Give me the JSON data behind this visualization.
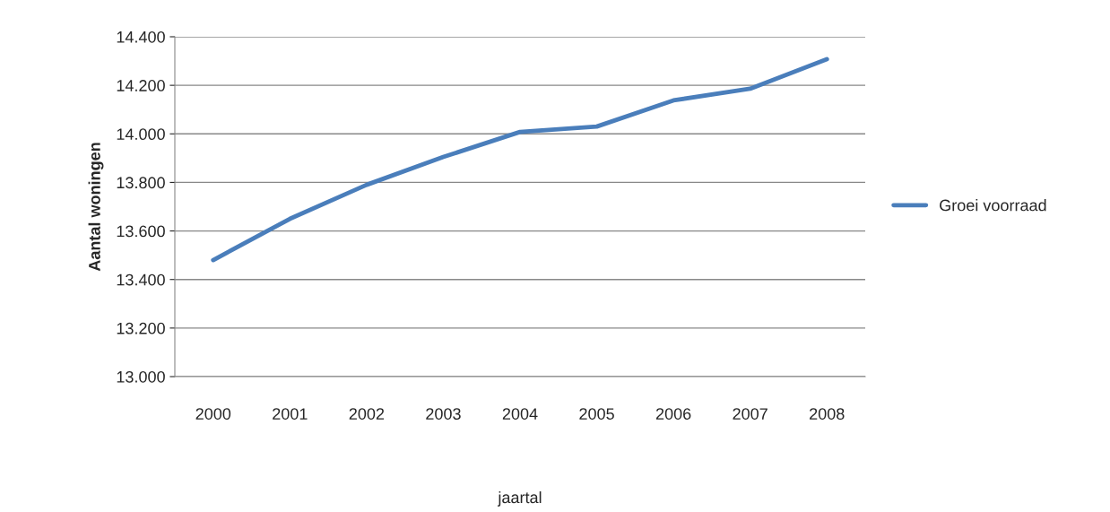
{
  "chart_data": {
    "type": "line",
    "ylabel": "Aantal woningen",
    "xlabel": "jaartal",
    "categories": [
      "2000",
      "2001",
      "2002",
      "2003",
      "2004",
      "2005",
      "2006",
      "2007",
      "2008"
    ],
    "series": [
      {
        "name": "Groei voorraad",
        "color": "#4a7ebb",
        "values": [
          13480,
          13650,
          13790,
          13905,
          14008,
          14030,
          14138,
          14186,
          14308
        ]
      }
    ],
    "ylim": [
      13000,
      14400
    ],
    "yticks": [
      {
        "value": 13000,
        "label": "13.000"
      },
      {
        "value": 13200,
        "label": "13.200"
      },
      {
        "value": 13400,
        "label": "13.400"
      },
      {
        "value": 13600,
        "label": "13.600"
      },
      {
        "value": 13800,
        "label": "13.800"
      },
      {
        "value": 14000,
        "label": "14.000"
      },
      {
        "value": 14200,
        "label": "14.200"
      },
      {
        "value": 14400,
        "label": "14.400"
      }
    ],
    "grid": "y",
    "legend": "right",
    "marker": "none",
    "line_style": "solid"
  }
}
